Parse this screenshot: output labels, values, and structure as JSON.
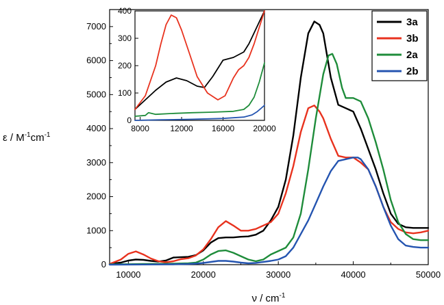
{
  "chart_data": [
    {
      "type": "line",
      "xlabel": "ν / cm",
      "xlabel_sup": "-1",
      "ylabel_parts": [
        "ε / M",
        "-1",
        "cm",
        "-1"
      ],
      "xlim": [
        7500,
        50000
      ],
      "ylim": [
        0,
        7500
      ],
      "xticks": [
        10000,
        20000,
        30000,
        40000,
        50000
      ],
      "yticks": [
        0,
        1000,
        2000,
        3000,
        4000,
        5000,
        6000,
        7000
      ],
      "legend": "top-right",
      "series": [
        {
          "name": "3a",
          "color": "#000000",
          "x": [
            7500,
            9000,
            10000,
            11000,
            12000,
            13000,
            14000,
            15000,
            16000,
            17000,
            18000,
            19000,
            20000,
            21000,
            22000,
            23000,
            24000,
            25000,
            26000,
            27000,
            28000,
            29000,
            30000,
            31000,
            32000,
            33000,
            34000,
            34800,
            35500,
            36000,
            37000,
            38000,
            39000,
            40000,
            41000,
            42000,
            43000,
            44000,
            45000,
            46000,
            47000,
            48000,
            49000,
            50000
          ],
          "y": [
            20,
            60,
            120,
            150,
            140,
            110,
            90,
            120,
            210,
            220,
            230,
            280,
            420,
            650,
            780,
            800,
            800,
            820,
            830,
            880,
            1000,
            1300,
            1700,
            2500,
            3800,
            5500,
            6800,
            7150,
            7050,
            6800,
            5500,
            4700,
            4600,
            4500,
            4000,
            3400,
            2800,
            2100,
            1500,
            1200,
            1100,
            1080,
            1080,
            1080
          ]
        },
        {
          "name": "3b",
          "color": "#e8321e",
          "x": [
            7500,
            9000,
            10000,
            11000,
            12000,
            13000,
            14000,
            15000,
            16000,
            17000,
            18000,
            19000,
            20000,
            21000,
            22000,
            23000,
            24000,
            25000,
            26000,
            27000,
            28000,
            29000,
            30000,
            31000,
            32000,
            33000,
            34000,
            34800,
            35500,
            36000,
            37000,
            38000,
            39000,
            40000,
            41000,
            42000,
            43000,
            44000,
            45000,
            46000,
            47000,
            48000,
            49000,
            50000
          ],
          "y": [
            20,
            150,
            320,
            390,
            300,
            180,
            100,
            70,
            100,
            160,
            190,
            270,
            450,
            750,
            1100,
            1280,
            1150,
            1000,
            1000,
            1050,
            1150,
            1250,
            1500,
            2100,
            2900,
            3900,
            4600,
            4680,
            4500,
            4300,
            3700,
            3200,
            3150,
            3150,
            3000,
            2800,
            2300,
            1700,
            1250,
            1050,
            950,
            920,
            950,
            1000
          ]
        },
        {
          "name": "2a",
          "color": "#1e8c3a",
          "x": [
            7500,
            10000,
            12000,
            14000,
            16000,
            18000,
            19000,
            20000,
            21000,
            22000,
            23000,
            24000,
            25000,
            26000,
            27000,
            28000,
            29000,
            30000,
            31000,
            32000,
            33000,
            34000,
            35000,
            36000,
            36700,
            37200,
            37800,
            38500,
            39000,
            40000,
            41000,
            42000,
            43000,
            44000,
            45000,
            46000,
            47000,
            48000,
            49000,
            50000
          ],
          "y": [
            10,
            15,
            20,
            25,
            30,
            40,
            60,
            150,
            300,
            400,
            420,
            350,
            250,
            150,
            100,
            150,
            300,
            400,
            500,
            800,
            1500,
            2800,
            4300,
            5600,
            6150,
            6200,
            5900,
            5200,
            4900,
            4900,
            4800,
            4300,
            3600,
            2800,
            1900,
            1250,
            900,
            750,
            720,
            720
          ]
        },
        {
          "name": "2b",
          "color": "#2454b0",
          "x": [
            7500,
            12000,
            16000,
            18000,
            19000,
            20000,
            21000,
            22000,
            23000,
            24000,
            25000,
            26000,
            27000,
            28000,
            29000,
            30000,
            31000,
            32000,
            33000,
            34000,
            35000,
            36000,
            37000,
            38000,
            39000,
            40000,
            40600,
            41000,
            42000,
            43000,
            44000,
            45000,
            46000,
            47000,
            48000,
            49000,
            50000
          ],
          "y": [
            0,
            5,
            10,
            20,
            30,
            50,
            80,
            110,
            110,
            90,
            60,
            40,
            50,
            80,
            110,
            150,
            250,
            500,
            900,
            1300,
            1800,
            2300,
            2750,
            3050,
            3100,
            3150,
            3150,
            3100,
            2800,
            2300,
            1700,
            1150,
            750,
            560,
            520,
            500,
            500
          ]
        }
      ]
    },
    {
      "type": "line",
      "inset": true,
      "xlim": [
        7500,
        20000
      ],
      "ylim": [
        0,
        400
      ],
      "xticks": [
        8000,
        12000,
        16000,
        20000
      ],
      "yticks": [
        0,
        100,
        200,
        300,
        400
      ],
      "series": [
        {
          "name": "3a",
          "color": "#000000",
          "x": [
            7500,
            8500,
            9500,
            10500,
            11500,
            12500,
            13500,
            14200,
            15000,
            16000,
            17000,
            18000,
            18500,
            19000,
            19500,
            20000
          ],
          "y": [
            40,
            75,
            110,
            140,
            155,
            145,
            125,
            120,
            160,
            220,
            230,
            250,
            280,
            320,
            360,
            400
          ]
        },
        {
          "name": "3b",
          "color": "#e8321e",
          "x": [
            7500,
            8500,
            9500,
            10000,
            10500,
            11000,
            11500,
            12000,
            12800,
            13500,
            14500,
            15500,
            16200,
            17000,
            17500,
            18000,
            18500,
            19000,
            19500,
            20000
          ],
          "y": [
            40,
            90,
            200,
            280,
            350,
            385,
            375,
            330,
            240,
            160,
            100,
            75,
            90,
            155,
            185,
            200,
            230,
            280,
            340,
            400
          ]
        },
        {
          "name": "2a",
          "color": "#1e8c3a",
          "x": [
            7500,
            8500,
            8800,
            9500,
            11000,
            13000,
            15000,
            17000,
            18000,
            18500,
            19000,
            19500,
            20000
          ],
          "y": [
            15,
            18,
            28,
            22,
            25,
            28,
            30,
            33,
            40,
            55,
            85,
            140,
            210
          ]
        },
        {
          "name": "2b",
          "color": "#2454b0",
          "x": [
            7500,
            10000,
            13000,
            16000,
            18000,
            18800,
            19300,
            19700,
            20000
          ],
          "y": [
            0,
            2,
            4,
            7,
            12,
            20,
            32,
            45,
            55
          ]
        }
      ]
    }
  ]
}
